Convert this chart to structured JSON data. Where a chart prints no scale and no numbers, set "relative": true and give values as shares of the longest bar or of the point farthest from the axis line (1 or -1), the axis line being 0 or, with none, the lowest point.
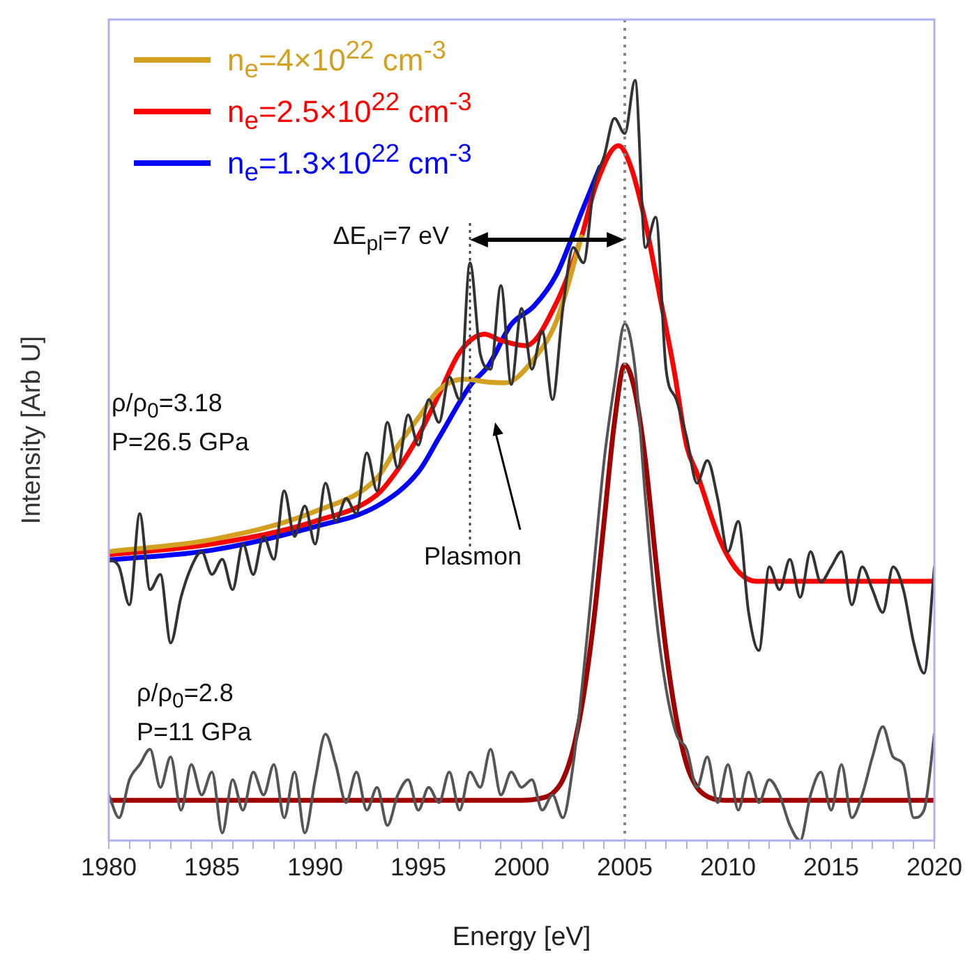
{
  "chart_data": {
    "type": "line",
    "relative": true,
    "xlabel": "Energy [eV]",
    "ylabel": "Intensity [Arb U]",
    "xlim": [
      1980,
      2020
    ],
    "xticks": [
      1980,
      {
        "value": 1981,
        "label": null
      },
      {
        "value": 1982,
        "label": null
      },
      {
        "value": 1983,
        "label": null
      },
      {
        "value": 1984,
        "label": null
      },
      1985,
      {
        "value": 1986,
        "label": null
      },
      {
        "value": 1987,
        "label": null
      },
      {
        "value": 1988,
        "label": null
      },
      {
        "value": 1989,
        "label": null
      },
      1990,
      {
        "value": 1991,
        "label": null
      },
      {
        "value": 1992,
        "label": null
      },
      {
        "value": 1993,
        "label": null
      },
      {
        "value": 1994,
        "label": null
      },
      1995,
      {
        "value": 1996,
        "label": null
      },
      {
        "value": 1997,
        "label": null
      },
      {
        "value": 1998,
        "label": null
      },
      {
        "value": 1999,
        "label": null
      },
      2000,
      {
        "value": 2001,
        "label": null
      },
      {
        "value": 2002,
        "label": null
      },
      {
        "value": 2003,
        "label": null
      },
      {
        "value": 2004,
        "label": null
      },
      2005,
      {
        "value": 2006,
        "label": null
      },
      {
        "value": 2007,
        "label": null
      },
      {
        "value": 2008,
        "label": null
      },
      {
        "value": 2009,
        "label": null
      },
      2010,
      {
        "value": 2011,
        "label": null
      },
      {
        "value": 2012,
        "label": null
      },
      {
        "value": 2013,
        "label": null
      },
      {
        "value": 2014,
        "label": null
      },
      2015,
      {
        "value": 2016,
        "label": null
      },
      {
        "value": 2017,
        "label": null
      },
      {
        "value": 2018,
        "label": null
      },
      {
        "value": 2019,
        "label": null
      },
      2020
    ],
    "grid": false,
    "legend": "top left",
    "marker": "none",
    "line_style": "solid",
    "series": [
      {
        "color": "#333333",
        "x": [
          1980,
          1980.5,
          1981,
          1981.5,
          1982,
          1982.5,
          1983,
          1983.5,
          1984,
          1984.5,
          1985,
          1985.5,
          1986,
          1986.5,
          1987,
          1987.5,
          1988,
          1988.5,
          1989,
          1989.5,
          1990,
          1990.5,
          1991,
          1991.5,
          1992,
          1992.5,
          1993,
          1993.5,
          1994,
          1994.5,
          1995,
          1995.5,
          1996,
          1996.5,
          1997,
          1997.5,
          1998,
          1998.5,
          1999,
          1999.5,
          2000,
          2000.5,
          2001,
          2001.5,
          2002,
          2002.5,
          2003,
          2003.5,
          2004,
          2004.5,
          2005,
          2005.5,
          2006,
          2006.5,
          2007,
          2007.5,
          2008,
          2008.5,
          2009,
          2009.5,
          2010,
          2010.5,
          2011,
          2011.5,
          2012,
          2012.5,
          2013,
          2013.5,
          2014,
          2014.5,
          2015,
          2015.5,
          2016,
          2016.5,
          2017,
          2017.5,
          2018,
          2018.5,
          2019,
          2019.5,
          2020
        ],
        "values": [
          0.37,
          0.36,
          0.31,
          0.43,
          0.33,
          0.35,
          0.26,
          0.32,
          0.36,
          0.38,
          0.35,
          0.37,
          0.33,
          0.39,
          0.35,
          0.4,
          0.37,
          0.46,
          0.4,
          0.44,
          0.39,
          0.47,
          0.42,
          0.45,
          0.43,
          0.51,
          0.46,
          0.55,
          0.49,
          0.56,
          0.52,
          0.58,
          0.55,
          0.61,
          0.58,
          0.76,
          0.64,
          0.62,
          0.73,
          0.6,
          0.7,
          0.62,
          0.67,
          0.58,
          0.7,
          0.78,
          0.76,
          0.86,
          0.9,
          0.95,
          0.93,
          1,
          0.78,
          0.82,
          0.62,
          0.58,
          0.53,
          0.47,
          0.5,
          0.45,
          0.38,
          0.42,
          0.3,
          0.25,
          0.36,
          0.33,
          0.37,
          0.32,
          0.38,
          0.34,
          0.36,
          0.38,
          0.31,
          0.36,
          0.33,
          0.3,
          0.36,
          0.33,
          0.26,
          0.22,
          0.36
        ]
      },
      {
        "color": "#555555",
        "x": [
          1980,
          1980.5,
          1981,
          1981.5,
          1982,
          1982.5,
          1983,
          1983.5,
          1984,
          1984.5,
          1985,
          1985.5,
          1986,
          1986.5,
          1987,
          1987.5,
          1988,
          1988.5,
          1989,
          1989.5,
          1990,
          1990.5,
          1991,
          1991.5,
          1992,
          1992.5,
          1993,
          1993.5,
          1994,
          1994.5,
          1995,
          1995.5,
          1996,
          1996.5,
          1997,
          1997.5,
          1998,
          1998.5,
          1999,
          1999.5,
          2000,
          2000.5,
          2001,
          2001.5,
          2002,
          2002.5,
          2003,
          2003.5,
          2004,
          2004.5,
          2005,
          2005.5,
          2006,
          2006.5,
          2007,
          2007.5,
          2008,
          2008.5,
          2009,
          2009.5,
          2010,
          2010.5,
          2011,
          2011.5,
          2012,
          2012.5,
          2013,
          2013.5,
          2014,
          2014.5,
          2015,
          2015.5,
          2016,
          2016.5,
          2017,
          2017.5,
          2018,
          2018.5,
          2019,
          2019.5,
          2020
        ],
        "values": [
          0.06,
          0.03,
          0.08,
          0.1,
          0.12,
          0.07,
          0.11,
          0.04,
          0.1,
          0.06,
          0.09,
          0.01,
          0.08,
          0.04,
          0.09,
          0.06,
          0.1,
          0.03,
          0.09,
          0.01,
          0.08,
          0.14,
          0.1,
          0.05,
          0.09,
          0.04,
          0.07,
          0.02,
          0.06,
          0.08,
          0.04,
          0.07,
          0.05,
          0.09,
          0.04,
          0.09,
          0.07,
          0.12,
          0.06,
          0.09,
          0.07,
          0.08,
          0.04,
          0.06,
          0.03,
          0.1,
          0.22,
          0.36,
          0.5,
          0.6,
          0.68,
          0.62,
          0.45,
          0.3,
          0.2,
          0.14,
          0.12,
          0.07,
          0.11,
          0.05,
          0.1,
          0.04,
          0.09,
          0.05,
          0.08,
          0.06,
          0.02,
          0,
          0.06,
          0.09,
          0.04,
          0.1,
          0.03,
          0.06,
          0.11,
          0.15,
          0.11,
          0.1,
          0.03,
          0.04,
          0.14
        ]
      },
      {
        "name": "n$_{e}$=4×10$^{22}$ cm$^{-3}$",
        "color": "#d4a020",
        "x": [
          1980,
          1985,
          1990,
          1993,
          1994,
          1995,
          1996,
          1997.2,
          1998.4,
          1999.2,
          2000.5,
          2001.7,
          2002.9
        ],
        "values": [
          0.38,
          0.396,
          0.433,
          0.477,
          0.519,
          0.556,
          0.593,
          0.607,
          0.603,
          0.602,
          0.63,
          0.684,
          0.794
        ]
      },
      {
        "name": "n$_{e}$=2.5×10$^{22}$ cm$^{-3}$",
        "color": "#ff0000",
        "x": [
          1980,
          1985,
          1990,
          1993,
          1994,
          1995,
          1996,
          1997,
          1998.2,
          1999,
          2000.2,
          2001.7,
          2002.9,
          2003.6,
          2004.7,
          2005.3,
          2006,
          2006.7,
          2007.4,
          2008,
          2008.5,
          2009.6,
          2010.5,
          2011.4,
          2020
        ],
        "values": [
          0.376,
          0.39,
          0.42,
          0.455,
          0.488,
          0.532,
          0.587,
          0.642,
          0.666,
          0.658,
          0.651,
          0.708,
          0.794,
          0.862,
          0.914,
          0.886,
          0.813,
          0.716,
          0.617,
          0.519,
          0.483,
          0.396,
          0.354,
          0.341,
          0.341
        ]
      },
      {
        "name": "n$_{e}$=1.3×10$^{22}$ cm$^{-3}$",
        "color": "#0000ff",
        "x": [
          1980,
          1985,
          1990,
          1993,
          1995,
          1996,
          1997.5,
          1998.4,
          1999.5,
          2000.6,
          2001.7,
          2002.9,
          2003.8
        ],
        "values": [
          0.369,
          0.382,
          0.413,
          0.44,
          0.485,
          0.53,
          0.598,
          0.625,
          0.679,
          0.703,
          0.745,
          0.826,
          0.886
        ]
      },
      {
        "color": "#a00000",
        "x": [
          1980,
          2000,
          2001,
          2001.5,
          2002,
          2002.5,
          2003,
          2003.5,
          2004,
          2004.5,
          2005,
          2005.5,
          2006,
          2006.5,
          2007,
          2007.5,
          2008,
          2008.5,
          2009,
          2010,
          2020
        ],
        "values": [
          0.053,
          0.053,
          0.056,
          0.062,
          0.08,
          0.12,
          0.19,
          0.29,
          0.42,
          0.55,
          0.626,
          0.59,
          0.5,
          0.37,
          0.25,
          0.16,
          0.1,
          0.07,
          0.058,
          0.053,
          0.053
        ]
      }
    ],
    "ref_lines": [
      {
        "axis": "x",
        "value": 2005,
        "color": "#888888",
        "line_style": "dotted"
      }
    ],
    "annotations": [
      "ΔE$_{pl}$=7 eV",
      "Plasmon",
      "ρ/ρ$_{0}$=3.18",
      "P=26.5 GPa",
      "ρ/ρ$_{0}$=2.8",
      "P=11 GPa"
    ]
  }
}
